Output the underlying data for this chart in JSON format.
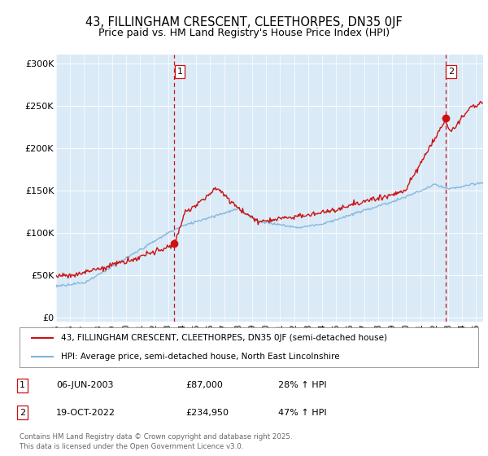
{
  "title": "43, FILLINGHAM CRESCENT, CLEETHORPES, DN35 0JF",
  "subtitle": "Price paid vs. HM Land Registry's House Price Index (HPI)",
  "ylabel_ticks": [
    "£0",
    "£50K",
    "£100K",
    "£150K",
    "£200K",
    "£250K",
    "£300K"
  ],
  "ytick_values": [
    0,
    50000,
    100000,
    150000,
    200000,
    250000,
    300000
  ],
  "ylim": [
    -5000,
    310000
  ],
  "xlim_start": 1995.0,
  "xlim_end": 2025.5,
  "background_color": "#daeaf7",
  "grid_color": "#ffffff",
  "hpi_color": "#7fb3d9",
  "price_color": "#cc1111",
  "annotation_color": "#cc1111",
  "sale1_x": 2003.44,
  "sale1_y": 87000,
  "sale1_label": "1",
  "sale1_date": "06-JUN-2003",
  "sale1_price": "£87,000",
  "sale1_hpi": "28% ↑ HPI",
  "sale2_x": 2022.8,
  "sale2_y": 234950,
  "sale2_label": "2",
  "sale2_date": "19-OCT-2022",
  "sale2_price": "£234,950",
  "sale2_hpi": "47% ↑ HPI",
  "legend_line1": "43, FILLINGHAM CRESCENT, CLEETHORPES, DN35 0JF (semi-detached house)",
  "legend_line2": "HPI: Average price, semi-detached house, North East Lincolnshire",
  "footnote": "Contains HM Land Registry data © Crown copyright and database right 2025.\nThis data is licensed under the Open Government Licence v3.0.",
  "title_fontsize": 10.5,
  "subtitle_fontsize": 9
}
